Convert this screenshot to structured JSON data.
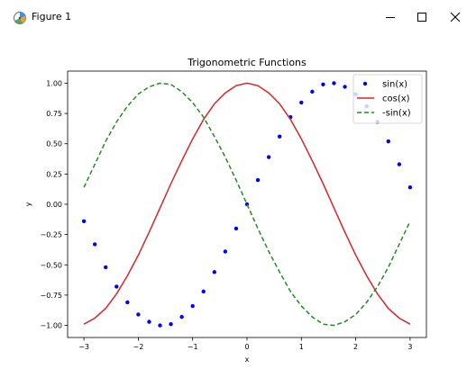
{
  "window": {
    "title": "Figure 1",
    "icons": {
      "app": "matplotlib-figure-icon",
      "minimize": "minimize-icon",
      "maximize": "maximize-icon",
      "close": "close-icon"
    }
  },
  "chart_data": {
    "type": "line",
    "title": "Trigonometric Functions",
    "xlabel": "x",
    "ylabel": "y",
    "xlim": [
      -3.3,
      3.3
    ],
    "ylim": [
      -1.1,
      1.1
    ],
    "xticks": [
      -3,
      -2,
      -1,
      0,
      1,
      2,
      3
    ],
    "xtick_labels": [
      "−3",
      "−2",
      "−1",
      "0",
      "1",
      "2",
      "3"
    ],
    "yticks": [
      1.0,
      0.75,
      0.5,
      0.25,
      0.0,
      -0.25,
      -0.5,
      -0.75,
      -1.0
    ],
    "ytick_labels": [
      "1.00",
      "0.75",
      "0.50",
      "0.25",
      "0.00",
      "−0.25",
      "−0.50",
      "−0.75",
      "−1.00"
    ],
    "grid": false,
    "legend_position": "top-right",
    "x": [
      -3.0,
      -2.8,
      -2.6,
      -2.4,
      -2.2,
      -2.0,
      -1.8,
      -1.6,
      -1.4,
      -1.2,
      -1.0,
      -0.8,
      -0.6,
      -0.4,
      -0.2,
      0.0,
      0.2,
      0.4,
      0.6,
      0.8,
      1.0,
      1.2,
      1.4,
      1.6,
      1.8,
      2.0,
      2.2,
      2.4,
      2.6,
      2.8,
      3.0
    ],
    "series": [
      {
        "name": "sin(x)",
        "style": "dots",
        "color": "#0000ff",
        "values": [
          -0.14,
          -0.33,
          -0.52,
          -0.68,
          -0.81,
          -0.91,
          -0.97,
          -1.0,
          -0.99,
          -0.93,
          -0.84,
          -0.72,
          -0.56,
          -0.39,
          -0.2,
          0.0,
          0.2,
          0.39,
          0.56,
          0.72,
          0.84,
          0.93,
          0.99,
          1.0,
          0.97,
          0.91,
          0.81,
          0.68,
          0.52,
          0.33,
          0.14
        ]
      },
      {
        "name": "cos(x)",
        "style": "solid",
        "color": "#d62728",
        "values": [
          -0.99,
          -0.94,
          -0.86,
          -0.74,
          -0.59,
          -0.42,
          -0.23,
          -0.03,
          0.17,
          0.36,
          0.54,
          0.7,
          0.83,
          0.92,
          0.98,
          1.0,
          0.98,
          0.92,
          0.83,
          0.7,
          0.54,
          0.36,
          0.17,
          -0.03,
          -0.23,
          -0.42,
          -0.59,
          -0.74,
          -0.86,
          -0.94,
          -0.99
        ]
      },
      {
        "name": "-sin(x)",
        "style": "dashed",
        "color": "#228b22",
        "values": [
          0.14,
          0.33,
          0.52,
          0.68,
          0.81,
          0.91,
          0.97,
          1.0,
          0.99,
          0.93,
          0.84,
          0.72,
          0.56,
          0.39,
          0.2,
          0.0,
          -0.2,
          -0.39,
          -0.56,
          -0.72,
          -0.84,
          -0.93,
          -0.99,
          -1.0,
          -0.97,
          -0.91,
          -0.81,
          -0.68,
          -0.52,
          -0.33,
          -0.14
        ]
      }
    ]
  }
}
